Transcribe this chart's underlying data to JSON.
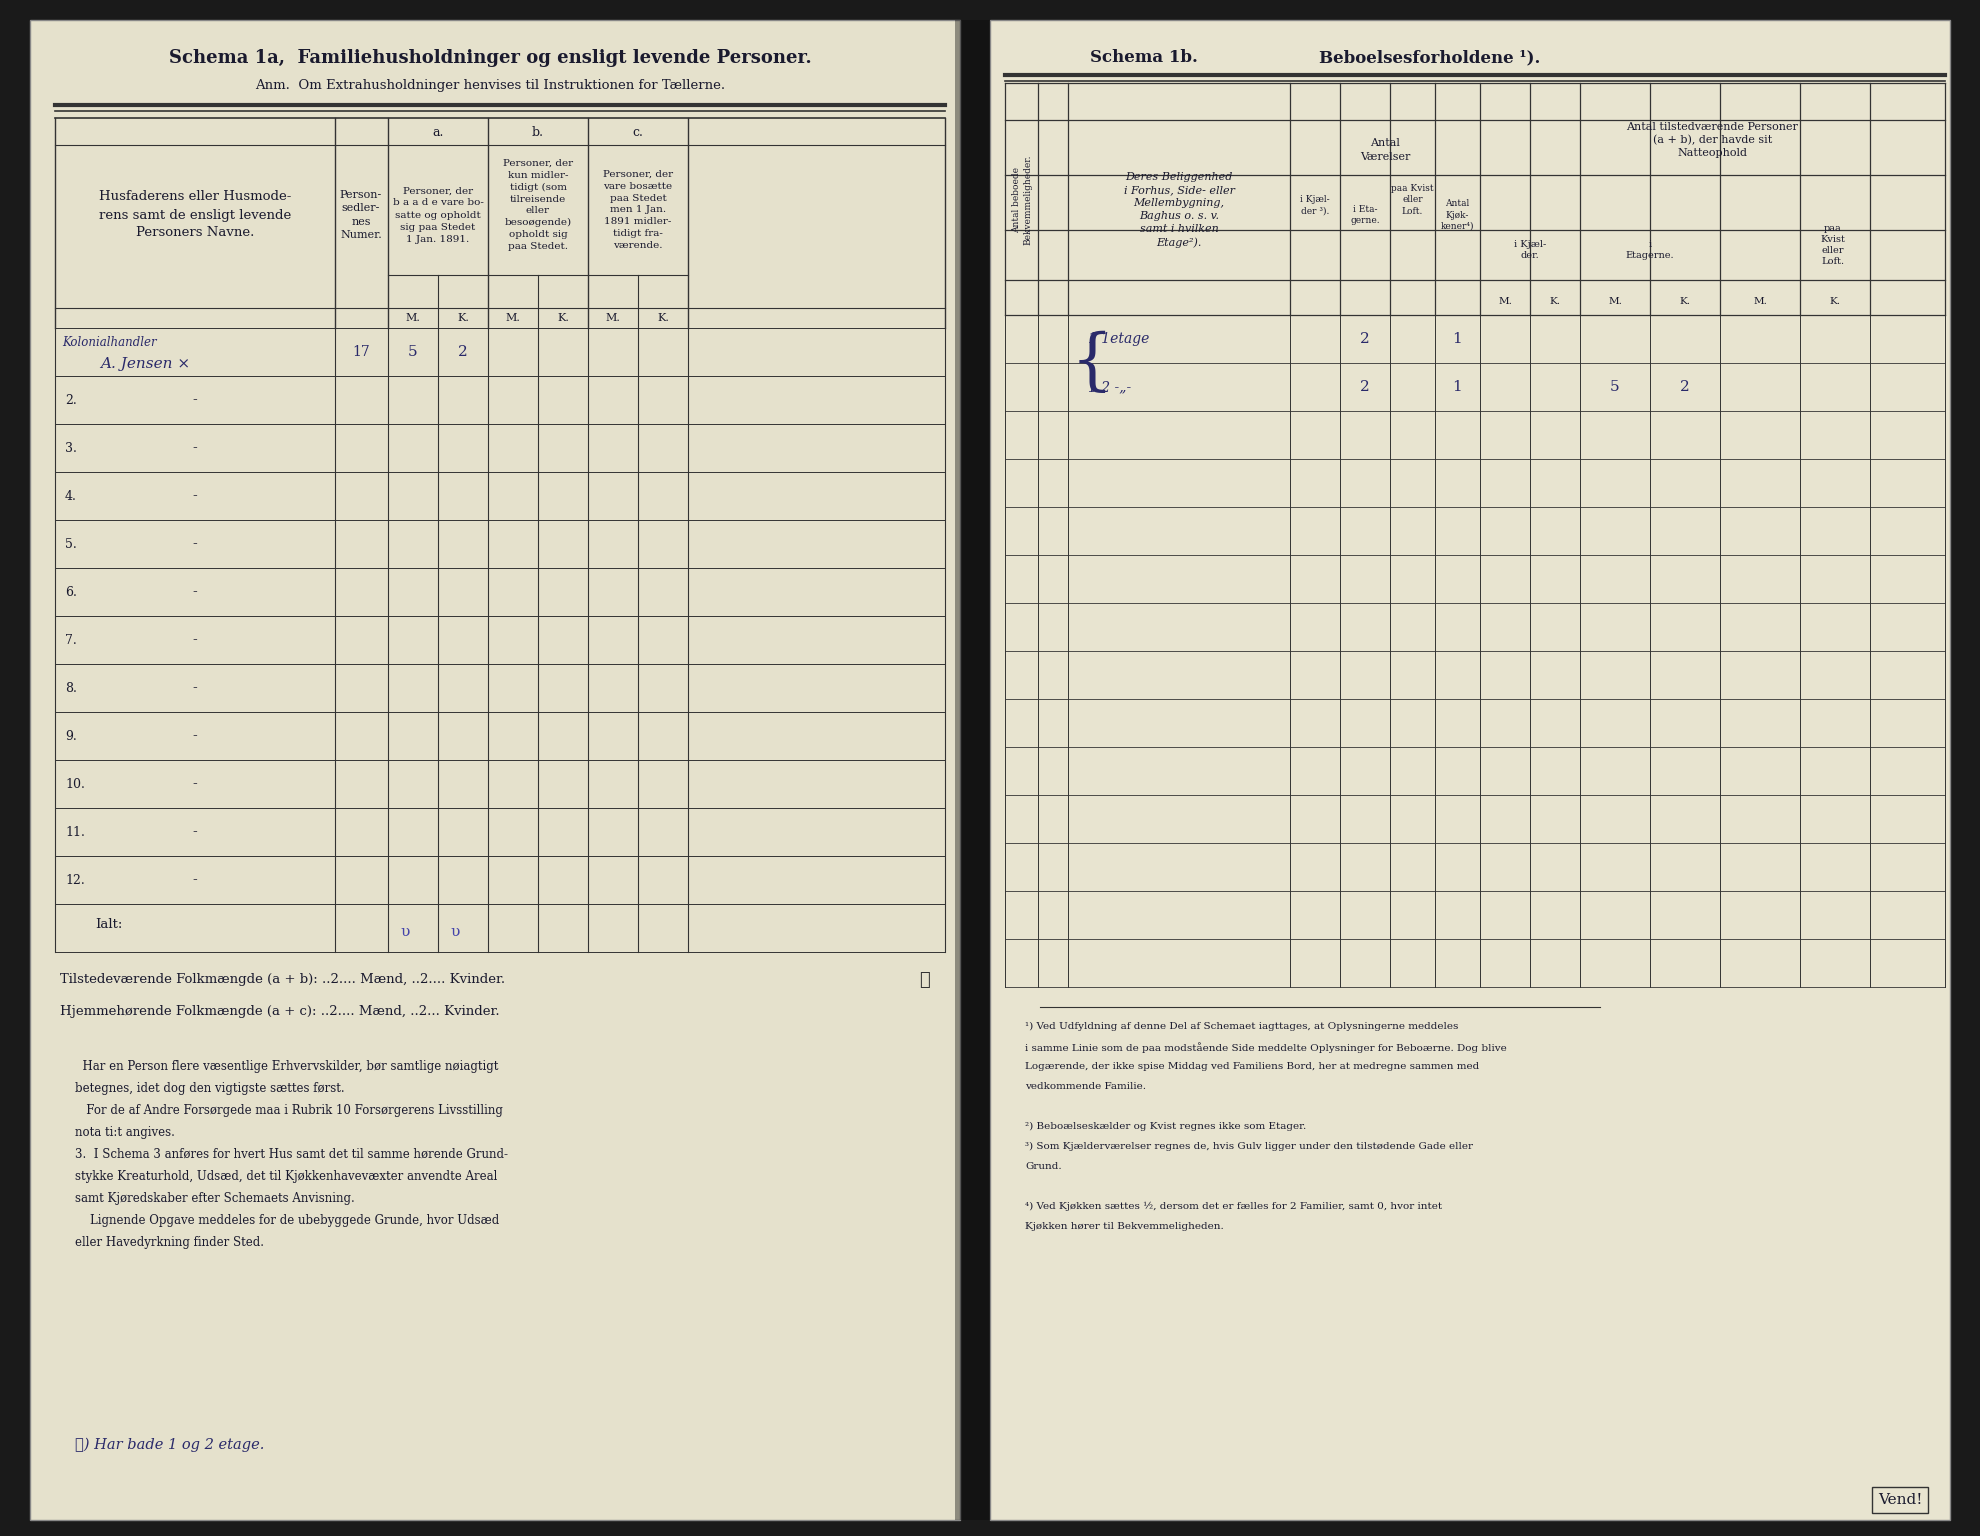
{
  "bg_color": "#1a1a1a",
  "left_page_bg": "#e5e1cc",
  "right_page_bg": "#e8e4d0",
  "title_left": "Schema 1a,  Familiehusholdninger og ensligt levende Personer.",
  "subtitle_left": "Anm.  Om Extrahusholdninger henvises til Instruktionen for Tællerne.",
  "title_right": "Schema 1b.",
  "subtitle_right": "Beboelsesforholdene ¹).",
  "rows_numbered": [
    "2.",
    "3.",
    "4.",
    "5.",
    "6.",
    "7.",
    "8.",
    "9.",
    "10.",
    "11.",
    "12."
  ],
  "tilstedev_text": "Tilstedeværende Folkmængde (a + b): ..2.... Mænd, ..2.... Kvinder.",
  "hjemmeh_text": "Hjemmehørende Folkmængde (a + c): ..2.... Mænd, ..2... Kvinder.",
  "handwritten_bottom": "⩽) Har bade 1 og 2 etage.",
  "footnote_right_1": "¹) Ved Udfyldning af denne Del af Schemaet iagttages, at Oplysningerne meddeles",
  "footnote_right_2": "i samme Linie som de paa modstående Side meddelte Oplysninger for Beboærne. Dog blive",
  "footnote_right_3": "Logærende, der ikke spise Middag ved Familiens Bord, her at medregne sammen med",
  "footnote_right_4": "vedkommende Familie.",
  "footnote_right_5": "²) Beboælseskælder og Kvist regnes ikke som Etager.",
  "footnote_right_6": "³) Som Kjælderværelser regnes de, hvis Gulv ligger under den tilstødende Gade eller",
  "footnote_right_7": "Grund.",
  "footnote_right_8": "⁴) Ved Kjøkken sættes ½, dersom det er fælles for 2 Familier, samt 0, hvor intet",
  "footnote_right_9": "Kjøkken hører til Bekvemmeligheden.",
  "vend_text": "Vend!",
  "ink_color": "#1a1a2e",
  "handwritten_color": "#2a2a6a",
  "line_color": "#333333"
}
